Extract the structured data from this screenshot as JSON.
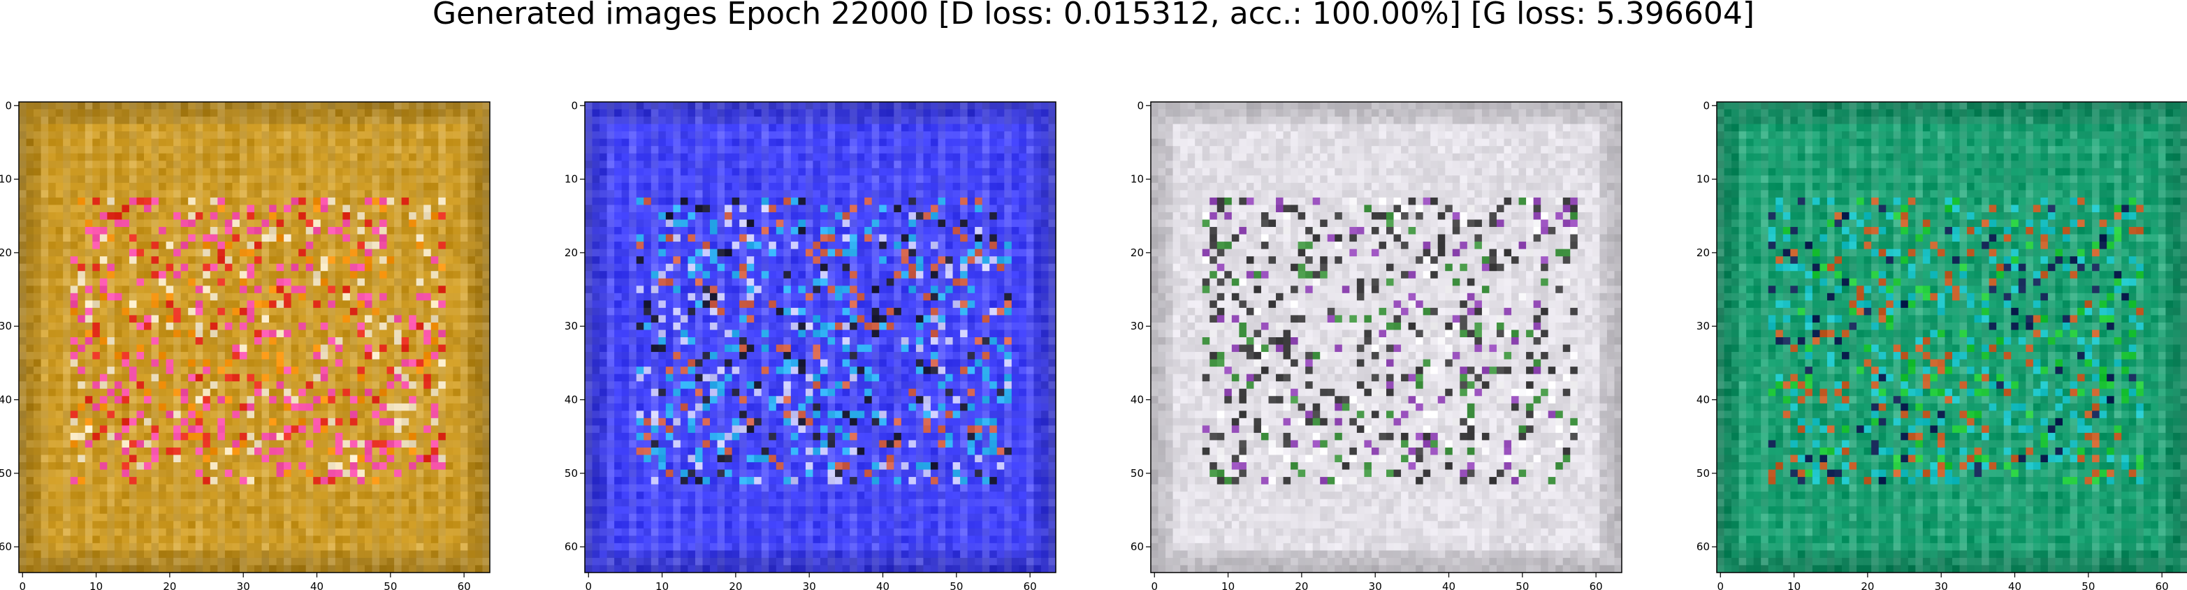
{
  "figure": {
    "title": "Generated images Epoch 22000 [D loss: 0.015312, acc.: 100.00%] [G loss: 5.396604]"
  },
  "subplots": [
    {
      "name": "generated-image-1",
      "dominant_color": "#c9961e",
      "accent_colors": [
        "#ff40c8",
        "#ff8c00",
        "#e81a1a",
        "#ffffff"
      ],
      "x_ticks": [
        "0",
        "10",
        "20",
        "30",
        "40",
        "50",
        "60"
      ],
      "y_ticks": [
        "0",
        "10",
        "20",
        "30",
        "40",
        "50",
        "60"
      ]
    },
    {
      "name": "generated-image-2",
      "dominant_color": "#3b3cf5",
      "accent_colors": [
        "#28c8f0",
        "#ff6a10",
        "#1a1a1a",
        "#ffffff"
      ],
      "x_ticks": [
        "0",
        "10",
        "20",
        "30",
        "40",
        "50",
        "60"
      ],
      "y_ticks": [
        "0",
        "10",
        "20",
        "30",
        "40",
        "50",
        "60"
      ]
    },
    {
      "name": "generated-image-3",
      "dominant_color": "#e2dfe6",
      "accent_colors": [
        "#1a1a1a",
        "#7a1aa8",
        "#2a8a2a",
        "#ffffff"
      ],
      "x_ticks": [
        "0",
        "10",
        "20",
        "30",
        "40",
        "50",
        "60"
      ],
      "y_ticks": [
        "0",
        "10",
        "20",
        "30",
        "40",
        "50",
        "60"
      ]
    },
    {
      "name": "generated-image-4",
      "dominant_color": "#109a6a",
      "accent_colors": [
        "#18c8d8",
        "#ff4a10",
        "#101050",
        "#20d820"
      ],
      "x_ticks": [
        "0",
        "10",
        "20",
        "30",
        "40",
        "50",
        "60"
      ],
      "y_ticks": [
        "0",
        "10",
        "20",
        "30",
        "40",
        "50",
        "60"
      ]
    }
  ]
}
